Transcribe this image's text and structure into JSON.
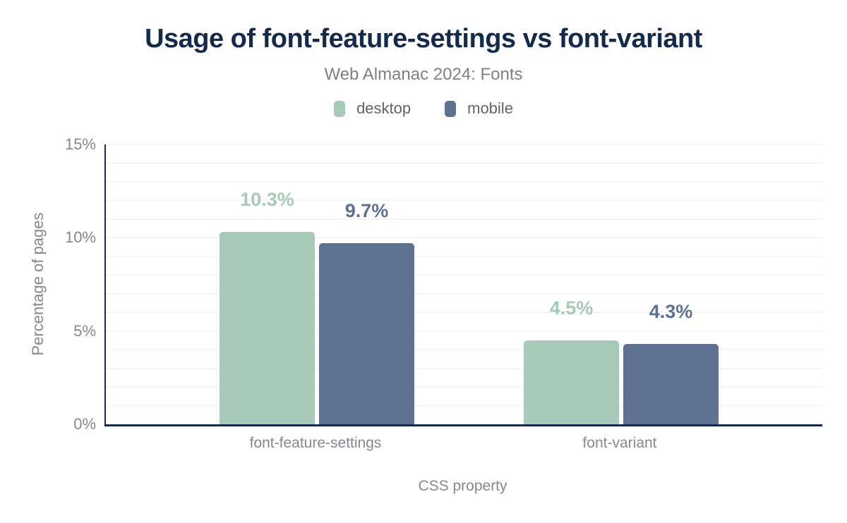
{
  "chart_data": {
    "type": "bar",
    "title": "Usage of font-feature-settings vs font-variant",
    "subtitle": "Web Almanac 2024: Fonts",
    "categories": [
      "font-feature-settings",
      "font-variant"
    ],
    "series": [
      {
        "name": "desktop",
        "color": "#a6c9b8",
        "values": [
          10.3,
          4.5
        ],
        "labels": [
          "10.3%",
          "4.5%"
        ]
      },
      {
        "name": "mobile",
        "color": "#5e7190",
        "values": [
          9.7,
          4.3
        ],
        "labels": [
          "9.7%",
          "4.3%"
        ]
      }
    ],
    "xlabel": "CSS property",
    "ylabel": "Percentage of pages",
    "ylim": [
      0,
      15
    ],
    "yticks": [
      {
        "value": 0,
        "label": "0%"
      },
      {
        "value": 5,
        "label": "5%"
      },
      {
        "value": 10,
        "label": "10%"
      },
      {
        "value": 15,
        "label": "15%"
      }
    ],
    "grid": {
      "step": 1,
      "on": true,
      "color": "#f5f5f5"
    },
    "legend_position": "top"
  },
  "style": {
    "title_color": "#152a4a",
    "subtitle_color": "#7d8085",
    "axis_line_color": "#152a4a",
    "tick_label_color": "#85888d",
    "legend_text_color": "#606368",
    "background": "#ffffff"
  }
}
